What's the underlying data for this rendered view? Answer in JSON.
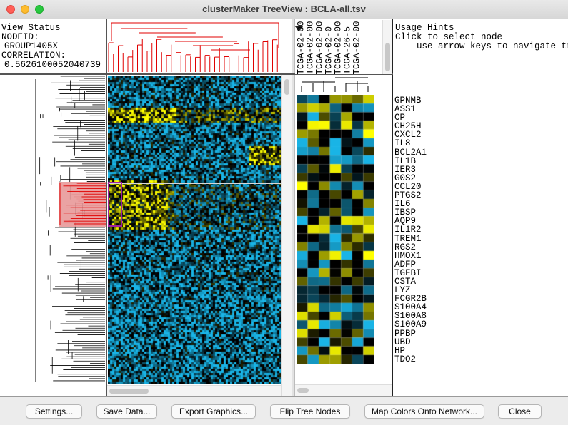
{
  "window": {
    "title": "clusterMaker TreeView : BCLA-all.tsv",
    "colors": {
      "close": "#ff5f57",
      "minimize": "#febc2e",
      "zoom": "#28c840"
    }
  },
  "status": {
    "title": "View Status",
    "node_label": "NODEID:",
    "node_value": "GROUP1405X",
    "corr_label": "CORRELATION:",
    "corr_value": "0.5626100052040739"
  },
  "hints": {
    "title": "Usage Hints",
    "line1": "Click to select node",
    "line2": "  - use arrow keys to navigate tree"
  },
  "array_names": [
    "TCGA-02-00",
    "TCGA-02-00",
    "TCGA-02-00",
    "TCGA-02-0",
    "TCGA-02-00",
    "TCGA-26-5",
    "TCGA-02-00"
  ],
  "genes": [
    "GPNMB",
    "ASS1",
    "CP",
    "CH25H",
    "CXCL2",
    "IL8",
    "BCL2A1",
    "IL1B",
    "IER3",
    "G0S2",
    "CCL20",
    "PTGS2",
    "IL6",
    "IBSP",
    "AQP9",
    "IL1R2",
    "TREM1",
    "RGS2",
    "HMOX1",
    "ADFP",
    "TGFBI",
    "CSTA",
    "LYZ",
    "FCGR2B",
    "S100A4",
    "S100A8",
    "S100A9",
    "PPBP",
    "UBD",
    "HP",
    "TDO2"
  ],
  "heatmap_colors": {
    "low": "#19b4e6",
    "high": "#ffff00",
    "mid": "#000000",
    "selection": "#e89999",
    "tree_selected": "#e00000",
    "tree": "#000000"
  },
  "buttons": {
    "settings": "Settings...",
    "save_data": "Save Data...",
    "export_graphics": "Export Graphics...",
    "flip_tree": "Flip Tree Nodes",
    "map_colors": "Map Colors Onto Network...",
    "close": "Close"
  }
}
